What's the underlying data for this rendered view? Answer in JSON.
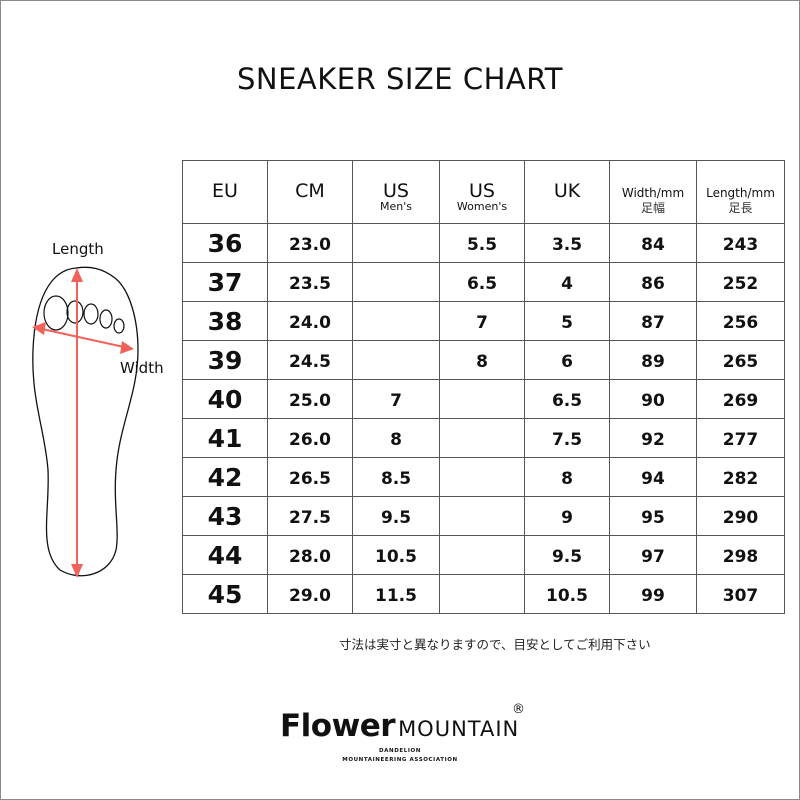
{
  "title": "SNEAKER SIZE CHART",
  "diagram": {
    "length_label": "Length",
    "width_label": "Width",
    "arrow_color": "#f0625a"
  },
  "table": {
    "headers": [
      {
        "main": "EU",
        "sub": ""
      },
      {
        "main": "CM",
        "sub": ""
      },
      {
        "main": "US",
        "sub": "Men's"
      },
      {
        "main": "US",
        "sub": "Women's"
      },
      {
        "main": "UK",
        "sub": ""
      },
      {
        "main": "Width/mm",
        "sub": "足幅"
      },
      {
        "main": "Length/mm",
        "sub": "足長"
      }
    ],
    "rows": [
      [
        "36",
        "23.0",
        "",
        "5.5",
        "3.5",
        "84",
        "243"
      ],
      [
        "37",
        "23.5",
        "",
        "6.5",
        "4",
        "86",
        "252"
      ],
      [
        "38",
        "24.0",
        "",
        "7",
        "5",
        "87",
        "256"
      ],
      [
        "39",
        "24.5",
        "",
        "8",
        "6",
        "89",
        "265"
      ],
      [
        "40",
        "25.0",
        "7",
        "",
        "6.5",
        "90",
        "269"
      ],
      [
        "41",
        "26.0",
        "8",
        "",
        "7.5",
        "92",
        "277"
      ],
      [
        "42",
        "26.5",
        "8.5",
        "",
        "8",
        "94",
        "282"
      ],
      [
        "43",
        "27.5",
        "9.5",
        "",
        "9",
        "95",
        "290"
      ],
      [
        "44",
        "28.0",
        "10.5",
        "",
        "9.5",
        "97",
        "298"
      ],
      [
        "45",
        "29.0",
        "11.5",
        "",
        "10.5",
        "99",
        "307"
      ]
    ]
  },
  "note": "寸法は実寸と異なりますので、目安としてご利用下さい",
  "logo": {
    "word1": "Flower",
    "word2": "MOUNTAIN",
    "registered": "®",
    "tagline1": "DANDELION",
    "tagline2": "MOUNTAINEERING ASSOCIATION"
  }
}
